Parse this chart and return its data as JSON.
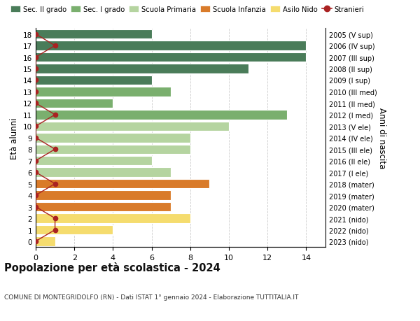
{
  "ages": [
    18,
    17,
    16,
    15,
    14,
    13,
    12,
    11,
    10,
    9,
    8,
    7,
    6,
    5,
    4,
    3,
    2,
    1,
    0
  ],
  "labels_right": [
    "2005 (V sup)",
    "2006 (IV sup)",
    "2007 (III sup)",
    "2008 (II sup)",
    "2009 (I sup)",
    "2010 (III med)",
    "2011 (II med)",
    "2012 (I med)",
    "2013 (V ele)",
    "2014 (IV ele)",
    "2015 (III ele)",
    "2016 (II ele)",
    "2017 (I ele)",
    "2018 (mater)",
    "2019 (mater)",
    "2020 (mater)",
    "2021 (nido)",
    "2022 (nido)",
    "2023 (nido)"
  ],
  "bar_values": [
    6,
    14,
    14,
    11,
    6,
    7,
    4,
    13,
    10,
    8,
    8,
    6,
    7,
    9,
    7,
    7,
    8,
    4,
    1
  ],
  "bar_colors": [
    "#4a7c59",
    "#4a7c59",
    "#4a7c59",
    "#4a7c59",
    "#4a7c59",
    "#7aaf6e",
    "#7aaf6e",
    "#7aaf6e",
    "#b5d4a0",
    "#b5d4a0",
    "#b5d4a0",
    "#b5d4a0",
    "#b5d4a0",
    "#d97b2a",
    "#d97b2a",
    "#d97b2a",
    "#f5dc6e",
    "#f5dc6e",
    "#f5dc6e"
  ],
  "stranieri_values": [
    0,
    1,
    0,
    0,
    0,
    0,
    0,
    1,
    0,
    0,
    1,
    0,
    0,
    1,
    0,
    0,
    1,
    1,
    0
  ],
  "stranieri_color": "#aa2222",
  "legend_entries": [
    {
      "label": "Sec. II grado",
      "color": "#4a7c59"
    },
    {
      "label": "Sec. I grado",
      "color": "#7aaf6e"
    },
    {
      "label": "Scuola Primaria",
      "color": "#b5d4a0"
    },
    {
      "label": "Scuola Infanzia",
      "color": "#d97b2a"
    },
    {
      "label": "Asilo Nido",
      "color": "#f5dc6e"
    },
    {
      "label": "Stranieri",
      "color": "#aa2222"
    }
  ],
  "ylabel_left": "Età alunni",
  "ylabel_right": "Anni di nascita",
  "title": "Popolazione per età scolastica - 2024",
  "subtitle": "COMUNE DI MONTEGRIDOLFO (RN) - Dati ISTAT 1° gennaio 2024 - Elaborazione TUTTITALIA.IT",
  "xlim": [
    0,
    15
  ],
  "xticks": [
    0,
    2,
    4,
    6,
    8,
    10,
    12,
    14
  ],
  "background_color": "#ffffff",
  "grid_color": "#cccccc",
  "bar_edgecolor": "#ffffff",
  "bar_linewidth": 0.8,
  "bar_height": 0.82
}
